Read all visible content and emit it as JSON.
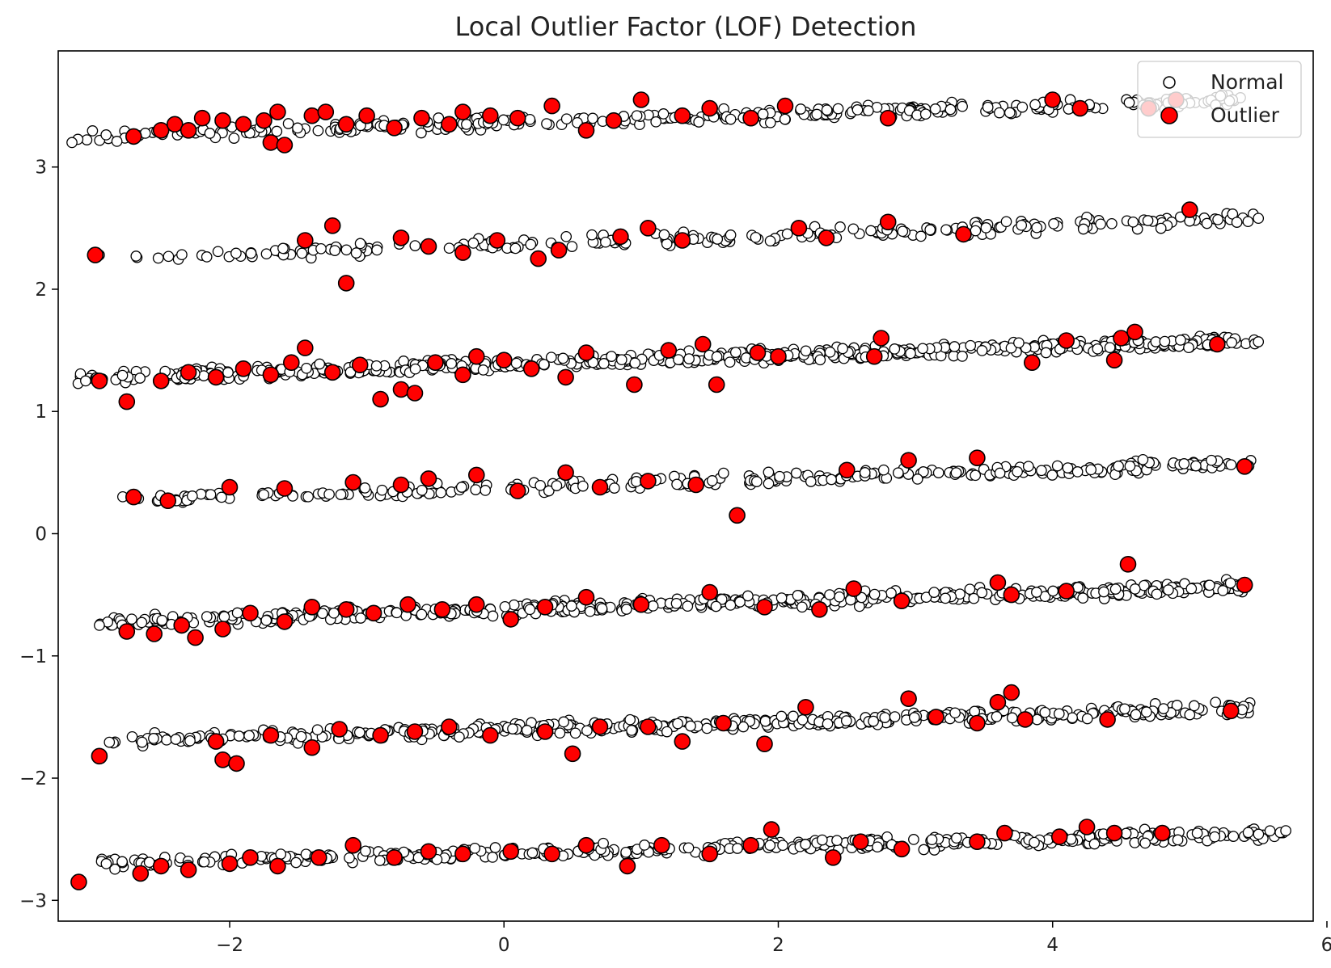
{
  "chart_data": {
    "type": "scatter",
    "title": "Local Outlier Factor (LOF) Detection",
    "xlabel": "",
    "ylabel": "",
    "xlim": [
      -3.25,
      5.9
    ],
    "ylim": [
      -3.17,
      3.95
    ],
    "xticks": [
      -2,
      0,
      2,
      4,
      6
    ],
    "yticks": [
      -3,
      -2,
      -1,
      0,
      1,
      2,
      3
    ],
    "xtick_labels": [
      "−2",
      "0",
      "2",
      "4",
      "6"
    ],
    "ytick_labels": [
      "−3",
      "−2",
      "−1",
      "0",
      "1",
      "2",
      "3"
    ],
    "grid": false,
    "legend_position": "top-right",
    "legend": [
      {
        "name": "Normal",
        "marker": "white-circle"
      },
      {
        "name": "Outlier",
        "marker": "red-circle"
      }
    ],
    "colors": {
      "normal_fill": "#ffffff",
      "outlier_fill": "#ff0000",
      "edge": "#000000"
    },
    "bands": [
      {
        "x_range": [
          -3.15,
          5.45
        ],
        "y_start": 3.25,
        "y_end": 3.55,
        "normal_count": 300
      },
      {
        "x_range": [
          -2.95,
          5.5
        ],
        "y_start": 2.25,
        "y_end": 2.58,
        "normal_count": 220
      },
      {
        "x_range": [
          -3.15,
          5.5
        ],
        "y_start": 1.27,
        "y_end": 1.58,
        "normal_count": 520
      },
      {
        "x_range": [
          -2.8,
          5.45
        ],
        "y_start": 0.27,
        "y_end": 0.58,
        "normal_count": 280
      },
      {
        "x_range": [
          -2.95,
          5.45
        ],
        "y_start": -0.72,
        "y_end": -0.43,
        "normal_count": 460
      },
      {
        "x_range": [
          -2.9,
          5.45
        ],
        "y_start": -1.7,
        "y_end": -1.43,
        "normal_count": 400
      },
      {
        "x_range": [
          -2.95,
          5.7
        ],
        "y_start": -2.7,
        "y_end": -2.45,
        "normal_count": 400
      }
    ],
    "normal_extra_points": [
      [
        -3.15,
        3.2
      ],
      [
        -3.05,
        1.25
      ],
      [
        -2.95,
        2.28
      ],
      [
        -2.9,
        -2.7
      ],
      [
        -2.95,
        -0.75
      ],
      [
        5.7,
        -2.43
      ],
      [
        5.5,
        1.57
      ],
      [
        5.5,
        2.58
      ]
    ],
    "outliers": [
      [
        -2.7,
        3.25
      ],
      [
        -2.5,
        3.3
      ],
      [
        -2.4,
        3.35
      ],
      [
        -2.3,
        3.3
      ],
      [
        -2.2,
        3.4
      ],
      [
        -2.05,
        3.38
      ],
      [
        -1.9,
        3.35
      ],
      [
        -1.75,
        3.38
      ],
      [
        -1.65,
        3.45
      ],
      [
        -1.7,
        3.2
      ],
      [
        -1.6,
        3.18
      ],
      [
        -1.4,
        3.42
      ],
      [
        -1.3,
        3.45
      ],
      [
        -1.15,
        3.35
      ],
      [
        -1.0,
        3.42
      ],
      [
        -0.8,
        3.32
      ],
      [
        -0.6,
        3.4
      ],
      [
        -0.4,
        3.35
      ],
      [
        -0.3,
        3.45
      ],
      [
        -0.1,
        3.42
      ],
      [
        0.1,
        3.4
      ],
      [
        0.35,
        3.5
      ],
      [
        0.6,
        3.3
      ],
      [
        0.8,
        3.38
      ],
      [
        1.0,
        3.55
      ],
      [
        1.3,
        3.42
      ],
      [
        1.5,
        3.48
      ],
      [
        1.8,
        3.4
      ],
      [
        2.05,
        3.5
      ],
      [
        2.8,
        3.4
      ],
      [
        4.0,
        3.55
      ],
      [
        4.2,
        3.48
      ],
      [
        4.7,
        3.48
      ],
      [
        4.9,
        3.55
      ],
      [
        -2.98,
        2.28
      ],
      [
        -1.45,
        2.4
      ],
      [
        -1.25,
        2.52
      ],
      [
        -1.15,
        2.05
      ],
      [
        -0.75,
        2.42
      ],
      [
        -0.55,
        2.35
      ],
      [
        -0.3,
        2.3
      ],
      [
        -0.05,
        2.4
      ],
      [
        0.25,
        2.25
      ],
      [
        0.4,
        2.32
      ],
      [
        0.85,
        2.43
      ],
      [
        1.05,
        2.5
      ],
      [
        1.3,
        2.4
      ],
      [
        2.15,
        2.5
      ],
      [
        2.35,
        2.42
      ],
      [
        2.8,
        2.55
      ],
      [
        3.35,
        2.45
      ],
      [
        5.0,
        2.65
      ],
      [
        -2.95,
        1.25
      ],
      [
        -2.75,
        1.08
      ],
      [
        -2.5,
        1.25
      ],
      [
        -2.3,
        1.32
      ],
      [
        -2.1,
        1.28
      ],
      [
        -1.9,
        1.35
      ],
      [
        -1.7,
        1.3
      ],
      [
        -1.55,
        1.4
      ],
      [
        -1.45,
        1.52
      ],
      [
        -1.25,
        1.32
      ],
      [
        -1.05,
        1.38
      ],
      [
        -0.9,
        1.1
      ],
      [
        -0.75,
        1.18
      ],
      [
        -0.65,
        1.15
      ],
      [
        -0.5,
        1.4
      ],
      [
        -0.3,
        1.3
      ],
      [
        -0.2,
        1.45
      ],
      [
        0.0,
        1.42
      ],
      [
        0.2,
        1.35
      ],
      [
        0.45,
        1.28
      ],
      [
        0.6,
        1.48
      ],
      [
        0.95,
        1.22
      ],
      [
        1.2,
        1.5
      ],
      [
        1.45,
        1.55
      ],
      [
        1.55,
        1.22
      ],
      [
        1.85,
        1.48
      ],
      [
        2.0,
        1.45
      ],
      [
        2.7,
        1.45
      ],
      [
        2.75,
        1.6
      ],
      [
        3.85,
        1.4
      ],
      [
        4.1,
        1.58
      ],
      [
        4.45,
        1.42
      ],
      [
        4.5,
        1.6
      ],
      [
        4.6,
        1.65
      ],
      [
        5.2,
        1.55
      ],
      [
        -2.7,
        0.3
      ],
      [
        -2.45,
        0.27
      ],
      [
        -2.0,
        0.38
      ],
      [
        -1.6,
        0.37
      ],
      [
        -1.1,
        0.42
      ],
      [
        -0.75,
        0.4
      ],
      [
        -0.55,
        0.45
      ],
      [
        -0.2,
        0.48
      ],
      [
        0.1,
        0.35
      ],
      [
        0.45,
        0.5
      ],
      [
        0.7,
        0.38
      ],
      [
        1.05,
        0.43
      ],
      [
        1.4,
        0.4
      ],
      [
        1.7,
        0.15
      ],
      [
        2.5,
        0.52
      ],
      [
        2.95,
        0.6
      ],
      [
        3.45,
        0.62
      ],
      [
        5.4,
        0.55
      ],
      [
        -2.75,
        -0.8
      ],
      [
        -2.55,
        -0.82
      ],
      [
        -2.35,
        -0.75
      ],
      [
        -2.25,
        -0.85
      ],
      [
        -2.05,
        -0.78
      ],
      [
        -1.85,
        -0.65
      ],
      [
        -1.6,
        -0.72
      ],
      [
        -1.4,
        -0.6
      ],
      [
        -1.15,
        -0.62
      ],
      [
        -0.95,
        -0.65
      ],
      [
        -0.7,
        -0.58
      ],
      [
        -0.45,
        -0.62
      ],
      [
        -0.2,
        -0.58
      ],
      [
        0.05,
        -0.7
      ],
      [
        0.3,
        -0.6
      ],
      [
        0.6,
        -0.52
      ],
      [
        1.0,
        -0.58
      ],
      [
        1.5,
        -0.48
      ],
      [
        1.9,
        -0.6
      ],
      [
        2.3,
        -0.62
      ],
      [
        2.55,
        -0.45
      ],
      [
        2.9,
        -0.55
      ],
      [
        3.6,
        -0.4
      ],
      [
        3.7,
        -0.5
      ],
      [
        4.1,
        -0.47
      ],
      [
        4.55,
        -0.25
      ],
      [
        5.4,
        -0.42
      ],
      [
        -2.95,
        -1.82
      ],
      [
        -2.1,
        -1.7
      ],
      [
        -2.05,
        -1.85
      ],
      [
        -1.95,
        -1.88
      ],
      [
        -1.7,
        -1.65
      ],
      [
        -1.4,
        -1.75
      ],
      [
        -1.2,
        -1.6
      ],
      [
        -0.9,
        -1.65
      ],
      [
        -0.65,
        -1.62
      ],
      [
        -0.4,
        -1.58
      ],
      [
        -0.1,
        -1.65
      ],
      [
        0.3,
        -1.62
      ],
      [
        0.5,
        -1.8
      ],
      [
        0.7,
        -1.58
      ],
      [
        1.05,
        -1.58
      ],
      [
        1.3,
        -1.7
      ],
      [
        1.6,
        -1.55
      ],
      [
        1.9,
        -1.72
      ],
      [
        2.2,
        -1.42
      ],
      [
        2.95,
        -1.35
      ],
      [
        3.15,
        -1.5
      ],
      [
        3.45,
        -1.55
      ],
      [
        3.6,
        -1.38
      ],
      [
        3.7,
        -1.3
      ],
      [
        3.8,
        -1.52
      ],
      [
        4.4,
        -1.52
      ],
      [
        5.3,
        -1.45
      ],
      [
        -3.1,
        -2.85
      ],
      [
        -2.65,
        -2.78
      ],
      [
        -2.5,
        -2.72
      ],
      [
        -2.3,
        -2.75
      ],
      [
        -2.0,
        -2.7
      ],
      [
        -1.85,
        -2.65
      ],
      [
        -1.65,
        -2.72
      ],
      [
        -1.35,
        -2.65
      ],
      [
        -1.1,
        -2.55
      ],
      [
        -0.8,
        -2.65
      ],
      [
        -0.55,
        -2.6
      ],
      [
        -0.3,
        -2.62
      ],
      [
        0.05,
        -2.6
      ],
      [
        0.35,
        -2.62
      ],
      [
        0.6,
        -2.55
      ],
      [
        0.9,
        -2.72
      ],
      [
        1.15,
        -2.55
      ],
      [
        1.5,
        -2.62
      ],
      [
        1.8,
        -2.55
      ],
      [
        1.95,
        -2.42
      ],
      [
        2.4,
        -2.65
      ],
      [
        2.6,
        -2.52
      ],
      [
        2.9,
        -2.58
      ],
      [
        3.45,
        -2.52
      ],
      [
        3.65,
        -2.45
      ],
      [
        4.05,
        -2.48
      ],
      [
        4.25,
        -2.4
      ],
      [
        4.45,
        -2.45
      ],
      [
        4.8,
        -2.45
      ]
    ]
  }
}
